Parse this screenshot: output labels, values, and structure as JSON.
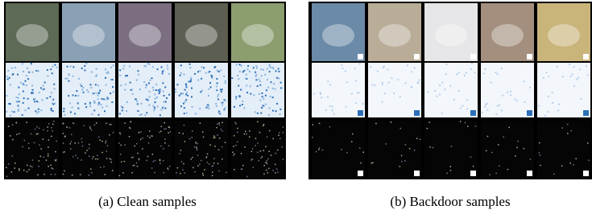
{
  "panels": [
    {
      "caption": "(a) Clean samples"
    },
    {
      "caption": "(b) Backdoor samples"
    }
  ]
}
